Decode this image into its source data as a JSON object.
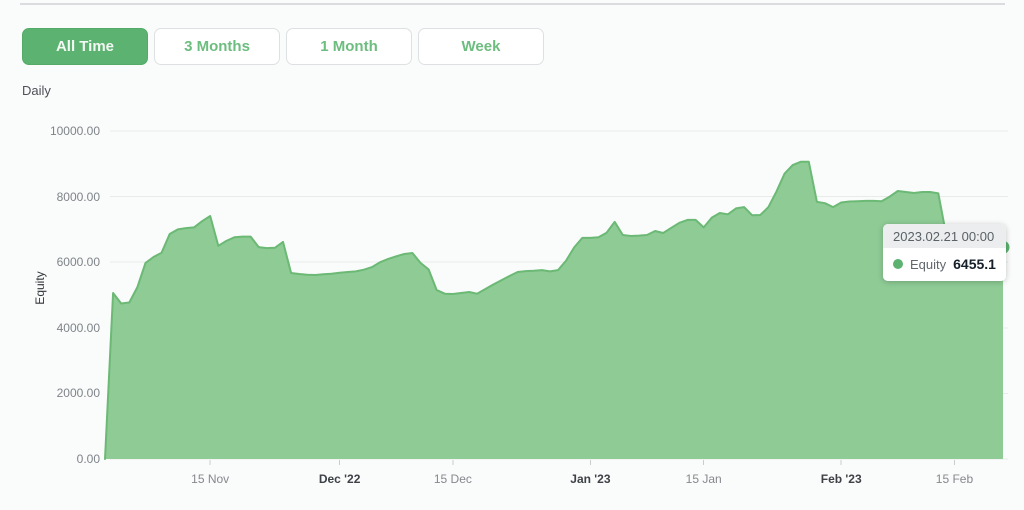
{
  "toolbar": {
    "buttons": [
      {
        "label": "All Time",
        "active": true
      },
      {
        "label": "3 Months",
        "active": false
      },
      {
        "label": "1 Month",
        "active": false
      },
      {
        "label": "Week",
        "active": false
      }
    ]
  },
  "period_label": "Daily",
  "colors": {
    "accent": "#5cb270",
    "area_fill": "#8ecb95",
    "area_line": "#6bb975",
    "grid": "#e9ebeb",
    "tick": "#c9cdd0",
    "axis_text": "#85898d",
    "axis_text_bold": "#3e4246"
  },
  "tooltip": {
    "date": "2023.02.21 00:00",
    "series_label": "Equity",
    "value": "6455.1"
  },
  "chart_data": {
    "type": "area",
    "title": "",
    "xlabel": "",
    "ylabel": "Equity",
    "ylim": [
      0,
      10000
    ],
    "grid": "horizontal-only",
    "legend_position": "none",
    "y_ticks": [
      {
        "label": "10000.00",
        "value": 10000
      },
      {
        "label": "8000.00",
        "value": 8000
      },
      {
        "label": "6000.00",
        "value": 6000
      },
      {
        "label": "4000.00",
        "value": 4000
      },
      {
        "label": "2000.00",
        "value": 2000
      },
      {
        "label": "0.00",
        "value": 0
      }
    ],
    "x_ticks": [
      {
        "label": "15 Nov",
        "day": 13,
        "bold": false
      },
      {
        "label": "Dec '22",
        "day": 29,
        "bold": true
      },
      {
        "label": "15 Dec",
        "day": 43,
        "bold": false
      },
      {
        "label": "Jan '23",
        "day": 60,
        "bold": true
      },
      {
        "label": "15 Jan",
        "day": 74,
        "bold": false
      },
      {
        "label": "Feb '23",
        "day": 91,
        "bold": true
      },
      {
        "label": "15 Feb",
        "day": 105,
        "bold": false
      }
    ],
    "series": [
      {
        "name": "Equity",
        "frequency": "daily",
        "start_date": "2022-11-02",
        "end_date": "2023-02-21",
        "values": [
          0,
          5060,
          4740,
          4770,
          5240,
          5980,
          6160,
          6290,
          6860,
          7000,
          7040,
          7060,
          7250,
          7410,
          6500,
          6650,
          6760,
          6780,
          6780,
          6460,
          6430,
          6440,
          6620,
          5670,
          5640,
          5620,
          5610,
          5630,
          5650,
          5680,
          5700,
          5720,
          5770,
          5850,
          6000,
          6100,
          6180,
          6250,
          6280,
          5980,
          5780,
          5150,
          5040,
          5030,
          5060,
          5090,
          5040,
          5180,
          5320,
          5450,
          5580,
          5700,
          5730,
          5740,
          5760,
          5720,
          5760,
          6050,
          6450,
          6740,
          6740,
          6760,
          6900,
          7230,
          6830,
          6800,
          6810,
          6830,
          6950,
          6890,
          7050,
          7200,
          7290,
          7290,
          7060,
          7360,
          7500,
          7460,
          7640,
          7680,
          7430,
          7440,
          7680,
          8160,
          8700,
          8960,
          9060,
          9060,
          7840,
          7800,
          7680,
          7820,
          7850,
          7860,
          7870,
          7870,
          7860,
          8000,
          8170,
          8140,
          8110,
          8140,
          8140,
          8100,
          6800,
          6600,
          6550,
          6520,
          6500,
          6480,
          6460,
          6455.1
        ]
      }
    ]
  }
}
